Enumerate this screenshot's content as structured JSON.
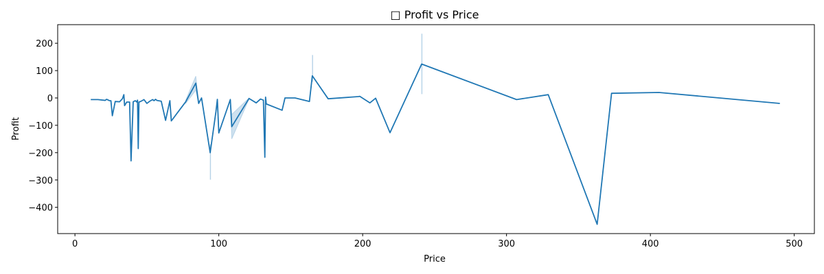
{
  "chart_data": {
    "type": "line",
    "title": "□ Profit vs Price",
    "xlabel": "Price",
    "ylabel": "Profit",
    "xlim": [
      -12,
      514
    ],
    "ylim": [
      -496,
      268
    ],
    "xticks": [
      0,
      100,
      200,
      300,
      400,
      500
    ],
    "yticks": [
      200,
      100,
      0,
      -100,
      -200,
      -300,
      -400
    ],
    "grid": false,
    "legend": "none",
    "colors": {
      "line": "#1f77b4",
      "band": "#1f77b4",
      "axis": "#000000",
      "background": "#ffffff"
    },
    "series": [
      {
        "values": [
          [
            11,
            -6
          ],
          [
            16,
            -6
          ],
          [
            21,
            -9
          ],
          [
            22,
            -5
          ],
          [
            24,
            -10
          ],
          [
            25,
            -10
          ],
          [
            26,
            -65
          ],
          [
            28,
            -13
          ],
          [
            31,
            -14
          ],
          [
            33,
            -3
          ],
          [
            34,
            12
          ],
          [
            34.5,
            -28
          ],
          [
            36,
            -15
          ],
          [
            38,
            -15
          ],
          [
            39,
            -230
          ],
          [
            40.5,
            -14
          ],
          [
            42,
            -10
          ],
          [
            43,
            -15
          ],
          [
            43.5,
            -8
          ],
          [
            44,
            -185
          ],
          [
            44.5,
            -15
          ],
          [
            46,
            -12
          ],
          [
            48,
            -6
          ],
          [
            50,
            -20
          ],
          [
            52,
            -12
          ],
          [
            54,
            -6
          ],
          [
            55,
            -10
          ],
          [
            56,
            -5
          ],
          [
            57,
            -9
          ],
          [
            60,
            -12
          ],
          [
            63,
            -82
          ],
          [
            66,
            -10
          ],
          [
            67,
            -84
          ],
          [
            77,
            -14
          ],
          [
            84,
            54
          ],
          [
            86,
            -20
          ],
          [
            88,
            0
          ],
          [
            94,
            -200
          ],
          [
            98,
            -50
          ],
          [
            99,
            -5
          ],
          [
            100,
            -128
          ],
          [
            108,
            -6
          ],
          [
            109,
            -105
          ],
          [
            121,
            -2
          ],
          [
            126,
            -18
          ],
          [
            129,
            -4
          ],
          [
            131,
            -8
          ],
          [
            132,
            -217
          ],
          [
            132.5,
            3
          ],
          [
            133,
            -22
          ],
          [
            144,
            -45
          ],
          [
            146,
            0
          ],
          [
            153,
            0
          ],
          [
            163,
            -13
          ],
          [
            165,
            81
          ],
          [
            176,
            -3
          ],
          [
            197,
            5
          ],
          [
            198,
            6
          ],
          [
            205,
            -18
          ],
          [
            209,
            -1
          ],
          [
            219,
            -127
          ],
          [
            241,
            124
          ],
          [
            307,
            -6
          ],
          [
            329,
            12
          ],
          [
            363,
            -462
          ],
          [
            373,
            17
          ],
          [
            406,
            20
          ],
          [
            490,
            -20
          ]
        ]
      }
    ],
    "bands": [
      {
        "x": [
          77,
          84,
          86
        ],
        "lower": [
          -20,
          28,
          -22
        ],
        "upper": [
          -8,
          80,
          -18
        ]
      },
      {
        "x": [
          108,
          109,
          121
        ],
        "lower": [
          -10,
          -150,
          -4
        ],
        "upper": [
          -2,
          -60,
          0
        ]
      },
      {
        "x": [
          94,
          94.3
        ],
        "lower": [
          -298,
          -298
        ],
        "upper": [
          -170,
          -170
        ]
      },
      {
        "x": [
          165,
          165.3
        ],
        "lower": [
          60,
          60
        ],
        "upper": [
          156,
          156
        ]
      },
      {
        "x": [
          241,
          241.3
        ],
        "lower": [
          15,
          15
        ],
        "upper": [
          234,
          234
        ]
      }
    ]
  }
}
